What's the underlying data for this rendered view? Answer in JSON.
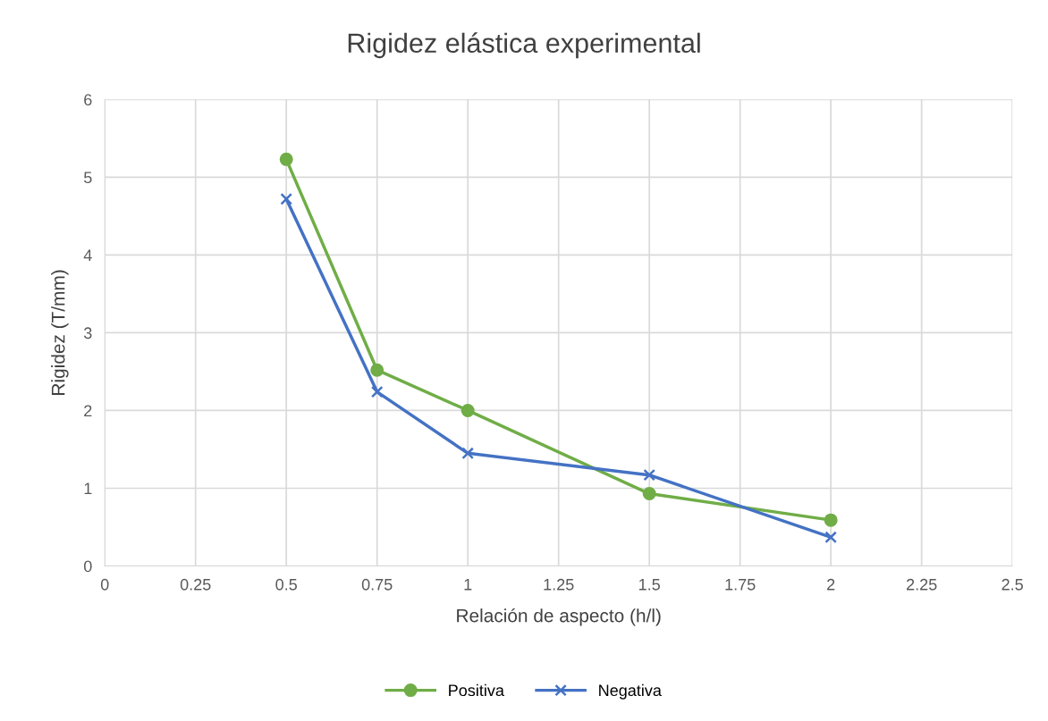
{
  "chart_data": {
    "type": "line",
    "title": "Rigidez elástica experimental",
    "xlabel": "Relación de aspecto (h/l)",
    "ylabel": "Rigidez (T/mm)",
    "x": [
      0.5,
      0.75,
      1,
      1.5,
      2
    ],
    "series": [
      {
        "name": "Positiva",
        "color": "#70ad47",
        "marker": "circle",
        "values": [
          5.23,
          2.52,
          2.0,
          0.93,
          0.59
        ]
      },
      {
        "name": "Negativa",
        "color": "#4472c4",
        "marker": "cross",
        "values": [
          4.72,
          2.24,
          1.45,
          1.17,
          0.37
        ]
      }
    ],
    "xlim": [
      0,
      2.5
    ],
    "xticks": [
      0,
      0.25,
      0.5,
      0.75,
      1,
      1.25,
      1.5,
      1.75,
      2,
      2.25,
      2.5
    ],
    "ylim": [
      0,
      6
    ],
    "yticks": [
      0,
      1,
      2,
      3,
      4,
      5,
      6
    ],
    "grid": true,
    "legend": "bottom",
    "line_style": "solid"
  }
}
